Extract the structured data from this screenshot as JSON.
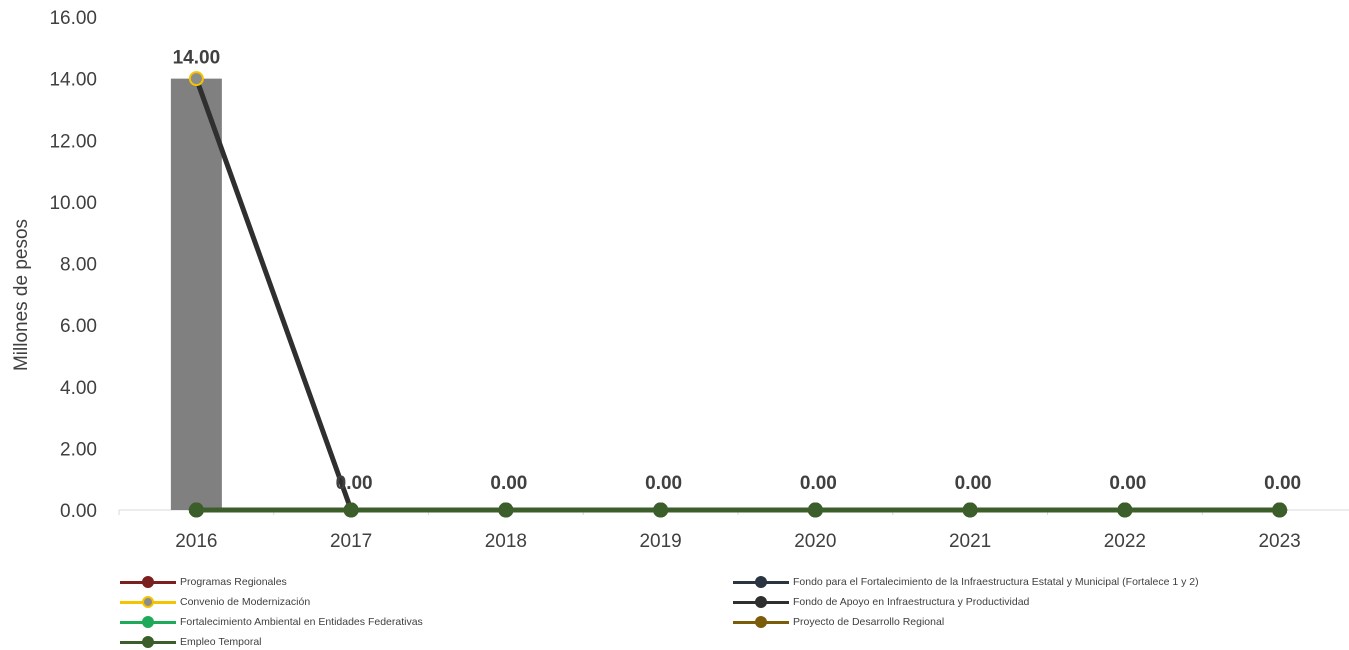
{
  "chart_data": {
    "type": "line",
    "title": "",
    "xlabel": "",
    "ylabel": "Millones de pesos",
    "ylim": [
      0,
      16
    ],
    "yticks": [
      "0.00",
      "2.00",
      "4.00",
      "6.00",
      "8.00",
      "10.00",
      "12.00",
      "14.00",
      "16.00"
    ],
    "categories": [
      "2016",
      "2017",
      "2018",
      "2019",
      "2020",
      "2021",
      "2022",
      "2023"
    ],
    "grid": false,
    "legend_position": "bottom",
    "bar_series": {
      "color": "#808080",
      "values": [
        14,
        0,
        0,
        0,
        0,
        0,
        0,
        0
      ]
    },
    "data_labels": [
      "14.00",
      "0.00",
      "0.00",
      "0.00",
      "0.00",
      "0.00",
      "0.00",
      "0.00"
    ],
    "series": [
      {
        "name": "Programas Regionales",
        "color": "#7b1f1f",
        "marker": "#7b1f1f",
        "values": [
          0,
          0,
          0,
          0,
          0,
          0,
          0,
          0
        ]
      },
      {
        "name": "Fondo para el Fortalecimiento de la Infraestructura Estatal y Municipal (Fortalece 1 y 2)",
        "color": "#2b3441",
        "marker": "#2b3441",
        "values": [
          0,
          0,
          0,
          0,
          0,
          0,
          0,
          0
        ]
      },
      {
        "name": "Convenio de Modernización",
        "color": "#f5c400",
        "marker": "#8c8c8c",
        "values": [
          14,
          0,
          0,
          0,
          0,
          0,
          0,
          0
        ]
      },
      {
        "name": "Fondo de Apoyo en Infraestructura y Productividad",
        "color": "#2f2f2f",
        "marker": "#2f2f2f",
        "values": [
          14,
          0,
          0,
          0,
          0,
          0,
          0,
          0
        ]
      },
      {
        "name": "Fortalecimiento Ambiental en Entidades Federativas",
        "color": "#1faa59",
        "marker": "#1faa59",
        "values": [
          0,
          0,
          0,
          0,
          0,
          0,
          0,
          0
        ]
      },
      {
        "name": "Proyecto de Desarrollo Regional",
        "color": "#7a5c0a",
        "marker": "#7a5c0a",
        "values": [
          0,
          0,
          0,
          0,
          0,
          0,
          0,
          0
        ]
      },
      {
        "name": "Empleo Temporal",
        "color": "#3b5e2b",
        "marker": "#3b5e2b",
        "values": [
          0,
          0,
          0,
          0,
          0,
          0,
          0,
          0
        ]
      }
    ]
  }
}
